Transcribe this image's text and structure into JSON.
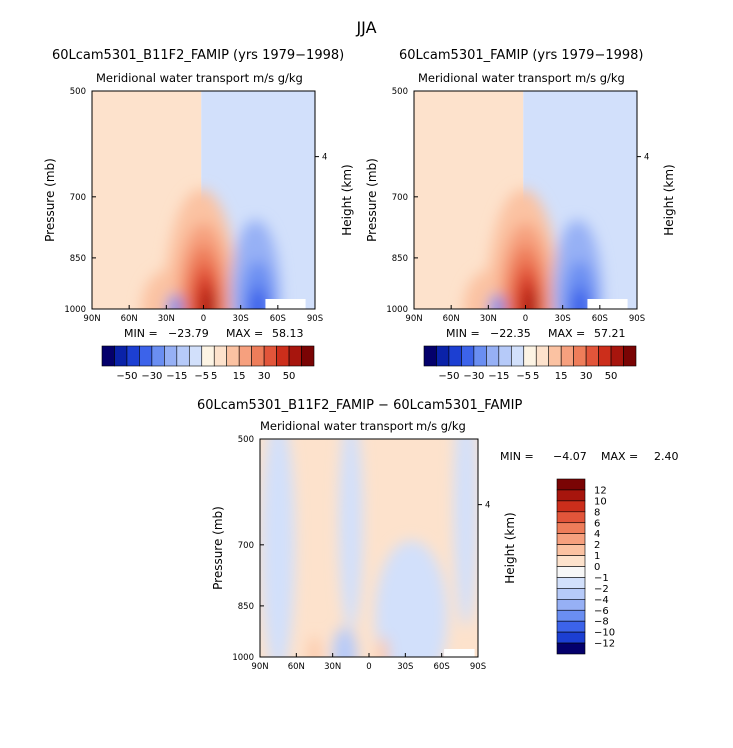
{
  "figure": {
    "title": "JJA"
  },
  "chart_data": [
    {
      "type": "heatmap",
      "title": "60Lcam5301_B11F2_FAMIP (yrs 1979−1998)",
      "subtitle": "Meridional water transport",
      "units": "m/s g/kg",
      "ylabel": "Pressure (mb)",
      "ylabel_right": "Height (km)",
      "x_ticks": [
        "90N",
        "60N",
        "30N",
        "0",
        "30S",
        "60S",
        "90S"
      ],
      "y_ticks": [
        "500",
        "700",
        "850",
        "1000"
      ],
      "y_ticks_right": [
        "4"
      ],
      "min_label": "MIN = ",
      "min_value": "−23.79",
      "max_label": "MAX = ",
      "max_value": "58.13",
      "field_features": [
        {
          "lat": 0,
          "level": 980,
          "value": 55
        },
        {
          "lat": 5,
          "level": 900,
          "value": 40
        },
        {
          "lat": -45,
          "level": 930,
          "value": -18
        },
        {
          "lat": 25,
          "level": 990,
          "value": -10
        }
      ]
    },
    {
      "type": "heatmap",
      "title": "60Lcam5301_FAMIP (yrs 1979−1998)",
      "subtitle": "Meridional water transport",
      "units": "m/s g/kg",
      "ylabel": "Pressure (mb)",
      "ylabel_right": "Height (km)",
      "x_ticks": [
        "90N",
        "60N",
        "30N",
        "0",
        "30S",
        "60S",
        "90S"
      ],
      "y_ticks": [
        "500",
        "700",
        "850",
        "1000"
      ],
      "y_ticks_right": [
        "4"
      ],
      "min_label": "MIN = ",
      "min_value": "−22.35",
      "max_label": "MAX = ",
      "max_value": "57.21",
      "field_features": [
        {
          "lat": 0,
          "level": 980,
          "value": 54
        },
        {
          "lat": 5,
          "level": 900,
          "value": 40
        },
        {
          "lat": -45,
          "level": 930,
          "value": -17
        },
        {
          "lat": 25,
          "level": 990,
          "value": -10
        }
      ]
    },
    {
      "type": "heatmap",
      "title": "60Lcam5301_B11F2_FAMIP − 60Lcam5301_FAMIP",
      "subtitle": "Meridional water transport",
      "units": "m/s g/kg",
      "ylabel": "Pressure (mb)",
      "ylabel_right": "Height (km)",
      "x_ticks": [
        "90N",
        "60N",
        "30N",
        "0",
        "30S",
        "60S",
        "90S"
      ],
      "y_ticks": [
        "500",
        "700",
        "850",
        "1000"
      ],
      "y_ticks_right": [
        "4"
      ],
      "min_label": "MIN =",
      "min_value": "−4.07",
      "max_label": "MAX =",
      "max_value": "2.40",
      "field_features": [
        {
          "lat": 45,
          "level": 980,
          "value": 1.5
        },
        {
          "lat": 20,
          "level": 940,
          "value": -1.5
        },
        {
          "lat": -15,
          "level": 960,
          "value": 1.5
        },
        {
          "lat": -55,
          "level": 600,
          "value": -0.5
        }
      ]
    }
  ],
  "colorbars": {
    "main": {
      "orientation": "horizontal",
      "labels": [
        "−50",
        "−30",
        "−15",
        "−5",
        "5",
        "15",
        "30",
        "50"
      ],
      "colors": [
        "#04006b",
        "#0a22a8",
        "#1c3fd2",
        "#3c63ea",
        "#6a8ef2",
        "#96b0f5",
        "#b6caf9",
        "#d2e0fb",
        "#fdf4e4",
        "#fde2cc",
        "#fbc2a2",
        "#f6a07e",
        "#ee7d5a",
        "#e2553a",
        "#cc2e1b",
        "#a7150d",
        "#7a0404"
      ]
    },
    "diff": {
      "orientation": "vertical",
      "labels": [
        "12",
        "10",
        "8",
        "6",
        "4",
        "2",
        "1",
        "0",
        "−1",
        "−2",
        "−4",
        "−6",
        "−8",
        "−10",
        "−12"
      ],
      "colors": [
        "#7a0404",
        "#a7150d",
        "#cc2e1b",
        "#e2553a",
        "#ee7d5a",
        "#f6a07e",
        "#fbc2a2",
        "#fde2cc",
        "#f7f7f7",
        "#d2e0fb",
        "#b6caf9",
        "#96b0f5",
        "#6a8ef2",
        "#3c63ea",
        "#1c3fd2",
        "#04006b"
      ]
    }
  }
}
